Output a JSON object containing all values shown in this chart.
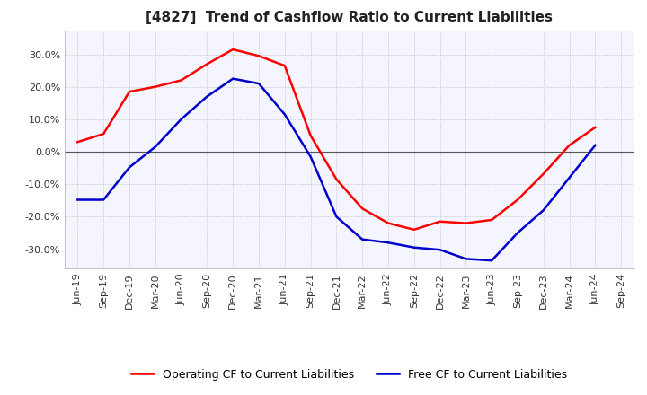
{
  "title": "[4827]  Trend of Cashflow Ratio to Current Liabilities",
  "x_labels": [
    "Jun-19",
    "Sep-19",
    "Dec-19",
    "Mar-20",
    "Jun-20",
    "Sep-20",
    "Dec-20",
    "Mar-21",
    "Jun-21",
    "Sep-21",
    "Dec-21",
    "Mar-22",
    "Jun-22",
    "Sep-22",
    "Dec-22",
    "Mar-23",
    "Jun-23",
    "Sep-23",
    "Dec-23",
    "Mar-24",
    "Jun-24",
    "Sep-24"
  ],
  "operating_cf": [
    0.03,
    0.055,
    0.185,
    0.2,
    0.22,
    0.27,
    0.315,
    0.295,
    0.265,
    0.05,
    -0.085,
    -0.175,
    -0.22,
    -0.24,
    -0.215,
    -0.22,
    -0.21,
    -0.148,
    -0.068,
    0.02,
    0.075,
    null
  ],
  "free_cf": [
    -0.148,
    -0.148,
    -0.048,
    0.015,
    0.1,
    0.17,
    0.225,
    0.21,
    0.115,
    -0.015,
    -0.2,
    -0.27,
    -0.28,
    -0.295,
    -0.302,
    -0.33,
    -0.335,
    -0.25,
    -0.18,
    -0.08,
    0.02,
    null
  ],
  "ylim": [
    -0.36,
    0.37
  ],
  "yticks": [
    -0.3,
    -0.2,
    -0.1,
    0.0,
    0.1,
    0.2,
    0.3
  ],
  "operating_color": "#FF0000",
  "free_color": "#0000CD",
  "grid_color": "#AAAAAA",
  "title_fontsize": 11,
  "tick_fontsize": 8,
  "legend_fontsize": 9,
  "background_color": "#FFFFFF",
  "plot_bg_color": "#F5F5FF"
}
